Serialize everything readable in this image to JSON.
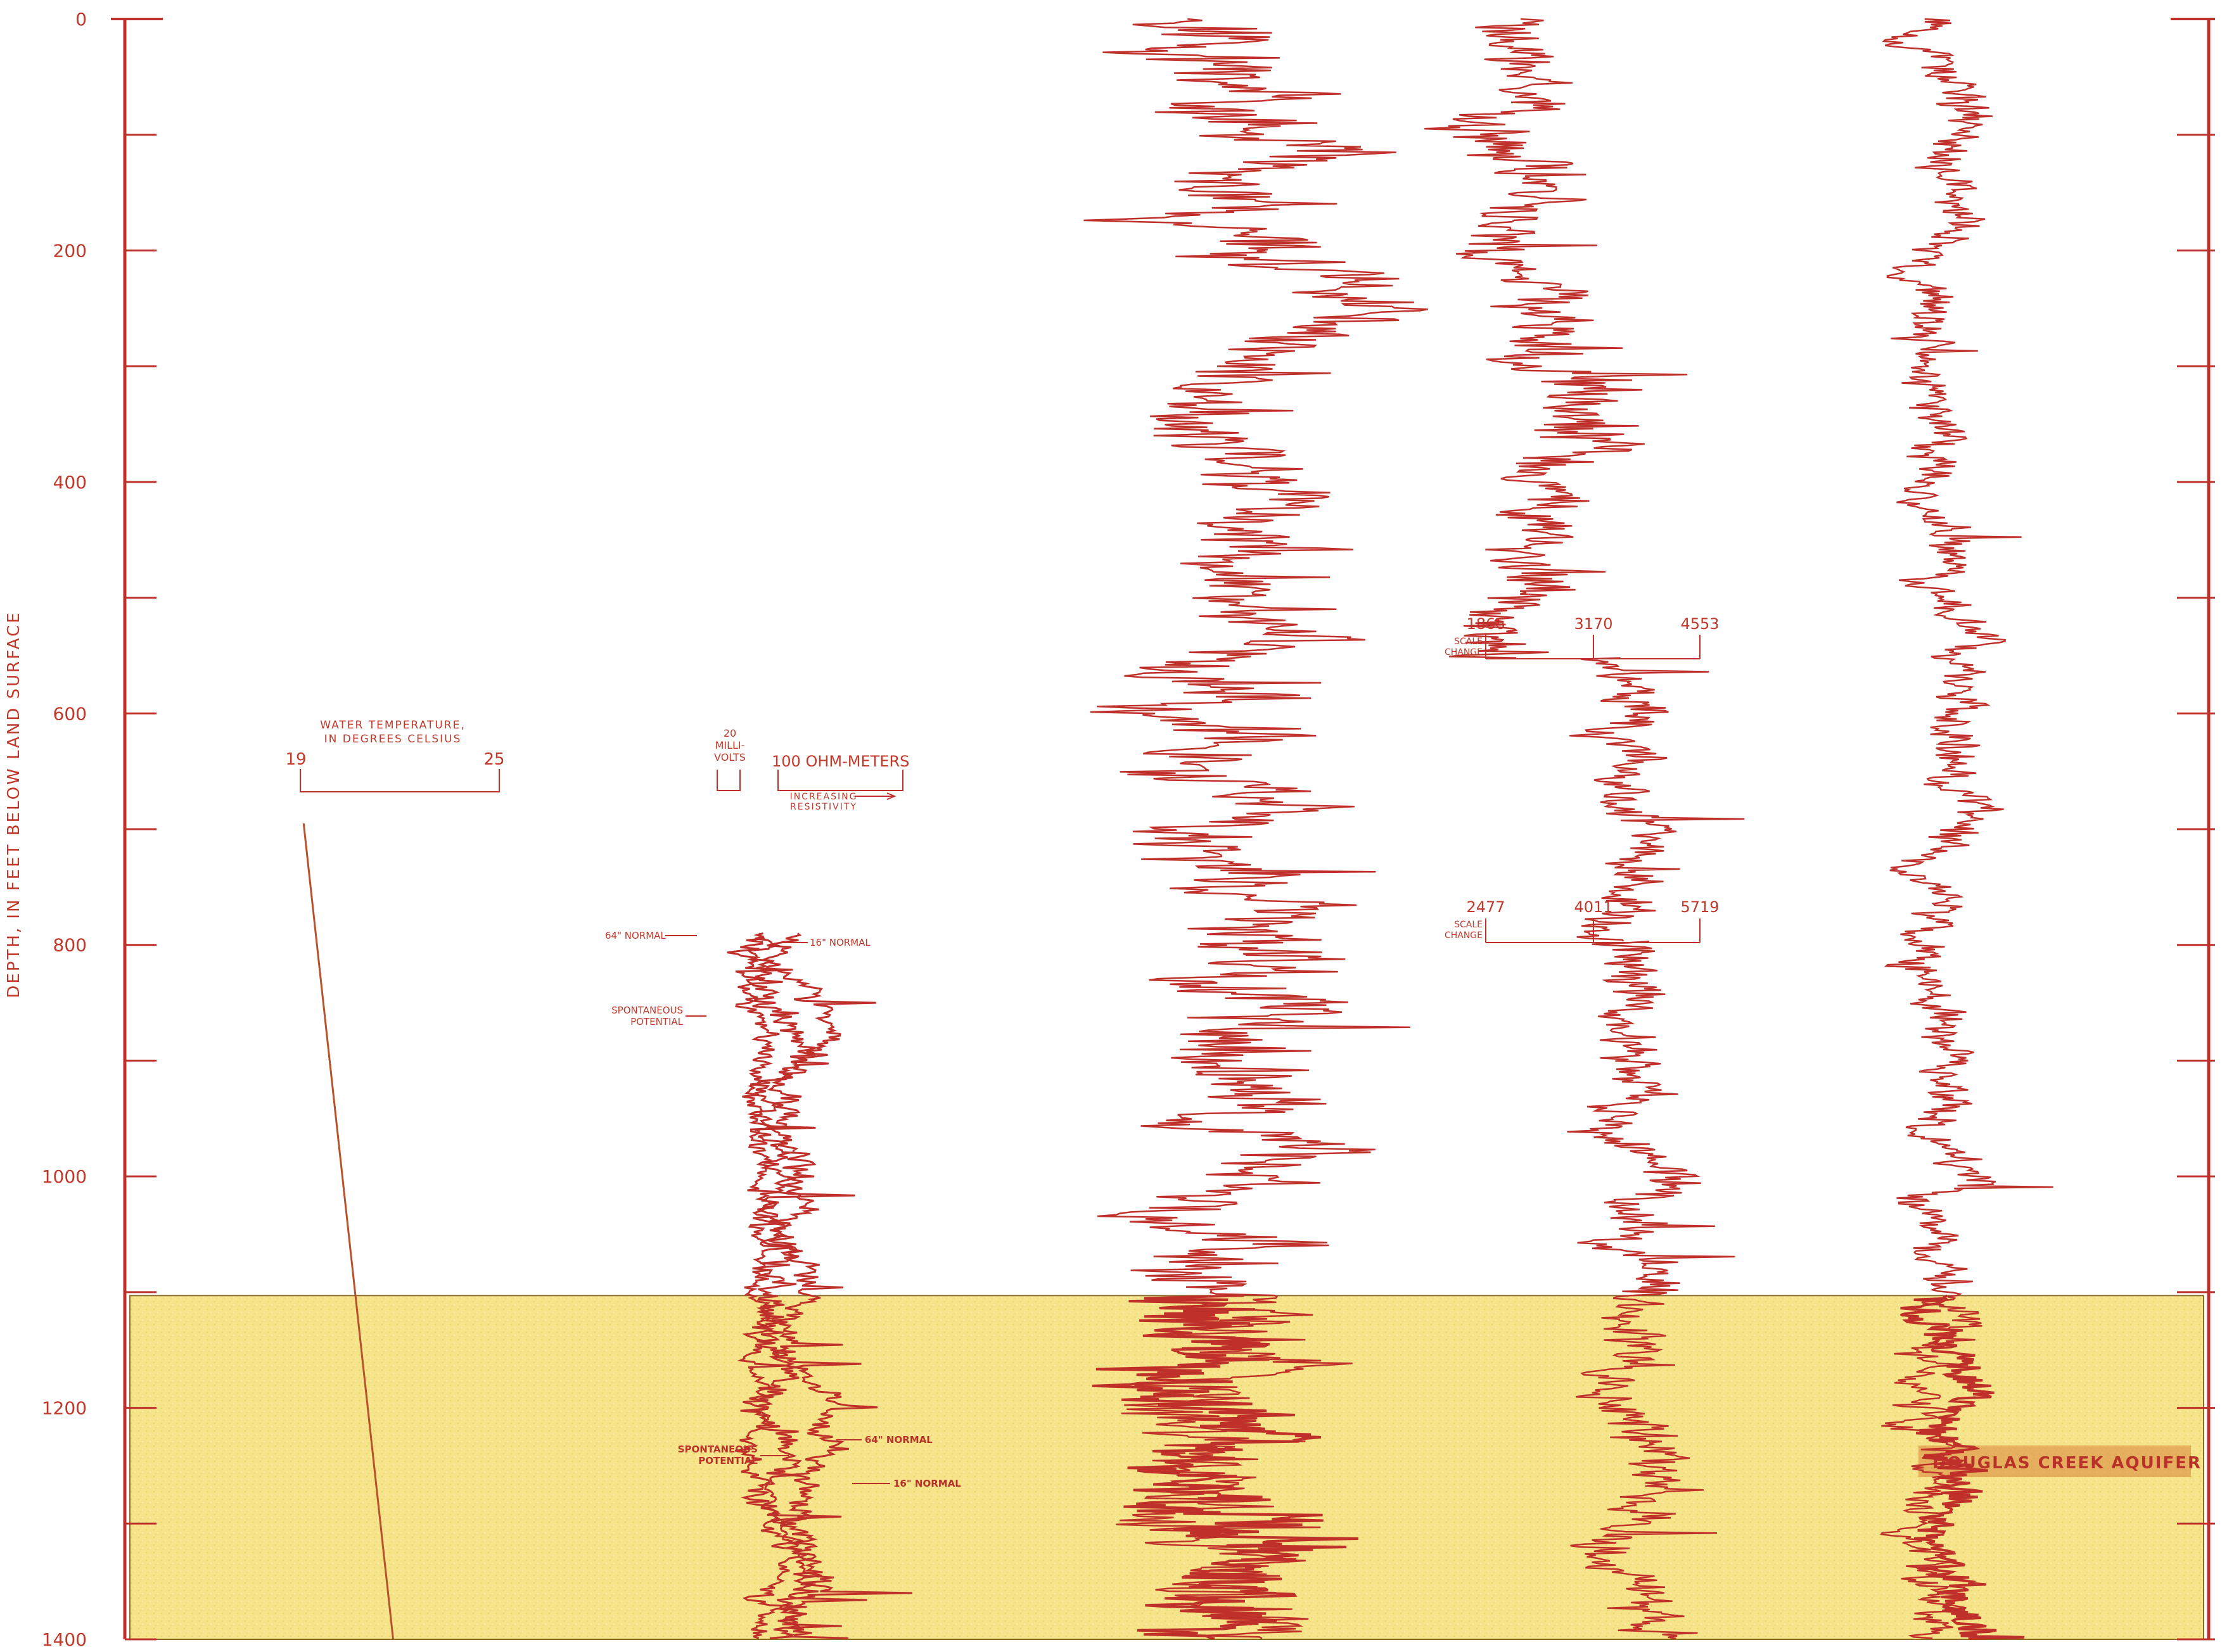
{
  "chart_data": {
    "type": "line",
    "ylabel": "DEPTH, IN FEET BELOW LAND SURFACE",
    "ylim": [
      0,
      1400
    ],
    "y_ticks": [
      "0",
      "200",
      "400",
      "600",
      "800",
      "1000",
      "1200",
      "1400"
    ],
    "y_tick_values": [
      0,
      200,
      400,
      600,
      800,
      1000,
      1200,
      1400
    ],
    "minor_tick_step": 100,
    "aquifer": {
      "name": "DOUGLAS CREEK AQUIFER",
      "top_depth": 1103,
      "bottom_depth": 1400,
      "color": "#f5e27a"
    },
    "line_color": "#c0302b",
    "temperature": {
      "title_line1": "WATER TEMPERATURE,",
      "title_line2": "IN DEGREES CELSIUS",
      "min_label": "19",
      "max_label": "25",
      "start": {
        "temp_c": 19.1,
        "depth": 695
      },
      "end": {
        "temp_c": 21.8,
        "depth": 1400
      }
    },
    "scale_legend": {
      "millivolts_line1": "20",
      "millivolts_line2": "MILLI-",
      "millivolts_line3": "VOLTS",
      "ohm_label": "100 OHM-METERS",
      "increasing_line1": "INCREASING",
      "increasing_line2": "RESISTIVITY"
    },
    "electric_log_labels": {
      "normal64_upper": "64\" NORMAL",
      "normal16_upper": "16\" NORMAL",
      "sp_upper_line1": "SPONTANEOUS",
      "sp_upper_line2": "POTENTIAL",
      "sp_lower_line1": "SPONTANEOUS",
      "sp_lower_line2": "POTENTIAL",
      "normal64_lower": "64\" NORMAL",
      "normal16_lower": "16\" NORMAL"
    },
    "electric_log_start_depth": 790,
    "scale_change_upper": {
      "label_line1": "SCALE",
      "label_line2": "CHANGE",
      "values": [
        "1866",
        "3170",
        "4553"
      ],
      "depth": 552
    },
    "scale_change_lower": {
      "label_line1": "SCALE",
      "label_line2": "CHANGE",
      "values": [
        "2477",
        "4011",
        "5719"
      ],
      "depth": 797
    },
    "aquifer_label": "DOUGLAS CREEK AQUIFER",
    "traces": [
      {
        "name": "log-track-1",
        "from": 0,
        "to": 1400,
        "base": 0.54,
        "amp": 0.1,
        "spikes": 0.05,
        "seed": 11
      },
      {
        "name": "log-track-2-upper",
        "from": 0,
        "to": 552,
        "base": 0.7,
        "amp": 0.07,
        "spikes": 0.03,
        "seed": 23
      },
      {
        "name": "log-track-2-middle",
        "from": 552,
        "to": 797,
        "base": 0.71,
        "amp": 0.05,
        "spikes": 0.02,
        "seed": 37
      },
      {
        "name": "log-track-2-lower",
        "from": 797,
        "to": 1400,
        "base": 0.73,
        "amp": 0.05,
        "spikes": 0.02,
        "seed": 41
      },
      {
        "name": "log-track-3",
        "from": 0,
        "to": 1400,
        "base": 0.87,
        "amp": 0.04,
        "spikes": 0.01,
        "seed": 53
      }
    ]
  }
}
